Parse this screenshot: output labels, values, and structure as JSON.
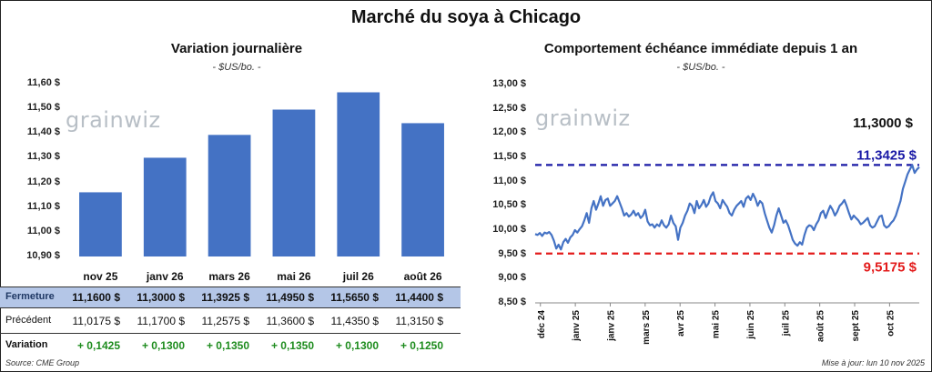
{
  "main_title": "Marché du soya à Chicago",
  "watermark": "grainwiz",
  "left": {
    "title": "Variation journalière",
    "unit": "- $US/bo. -"
  },
  "right": {
    "title": "Comportement échéance immédiate depuis 1 an",
    "unit": "- $US/bo. -"
  },
  "table": {
    "rows": [
      {
        "label": "Fermeture",
        "cells": [
          "11,1600 $",
          "11,3000 $",
          "11,3925 $",
          "11,4950 $",
          "11,5650 $",
          "11,4400 $"
        ]
      },
      {
        "label": "Précédent",
        "cells": [
          "11,0175 $",
          "11,1700 $",
          "11,2575 $",
          "11,3600 $",
          "11,4350 $",
          "11,3150 $"
        ]
      },
      {
        "label": "Variation",
        "cells": [
          "+ 0,1425",
          "+ 0,1300",
          "+ 0,1350",
          "+ 0,1350",
          "+ 0,1300",
          "+ 0,1250"
        ]
      }
    ]
  },
  "footer": {
    "source": "Source: CME Group",
    "updated": "Mise à jour: lun 10 nov 2025"
  },
  "colors": {
    "bar": "#4472c4",
    "line": "#4472c4",
    "high_line": "#1a1aa6",
    "low_line": "#e31b1b",
    "last_label": "#111111"
  },
  "chart_data": [
    {
      "type": "bar",
      "title": "Variation journalière",
      "categories": [
        "nov 25",
        "janv 26",
        "mars 26",
        "mai 26",
        "juil 26",
        "août 26"
      ],
      "values": [
        11.16,
        11.3,
        11.3925,
        11.495,
        11.565,
        11.44
      ],
      "ylim": [
        10.9,
        11.6
      ],
      "yticks": [
        "10,90 $",
        "11,00 $",
        "11,10 $",
        "11,20 $",
        "11,30 $",
        "11,40 $",
        "11,50 $",
        "11,60 $"
      ],
      "ytick_values": [
        10.9,
        11.0,
        11.1,
        11.2,
        11.3,
        11.4,
        11.5,
        11.6
      ],
      "grid": false
    },
    {
      "type": "line",
      "title": "Comportement échéance immédiate depuis 1 an",
      "ylim": [
        8.5,
        13.0
      ],
      "yticks": [
        "8,50 $",
        "9,00 $",
        "9,50 $",
        "10,00 $",
        "10,50 $",
        "11,00 $",
        "11,50 $",
        "12,00 $",
        "12,50 $",
        "13,00 $"
      ],
      "ytick_values": [
        8.5,
        9.0,
        9.5,
        10.0,
        10.5,
        11.0,
        11.5,
        12.0,
        12.5,
        13.0
      ],
      "xticks": [
        "déc 24",
        "janv 25",
        "janv 25",
        "mars 25",
        "avr 25",
        "mai 25",
        "juin 25",
        "juil 25",
        "août 25",
        "sept 25",
        "oct 25"
      ],
      "high": {
        "value": 11.3425,
        "label": "11,3425 $"
      },
      "low": {
        "value": 9.5175,
        "label": "9,5175 $"
      },
      "last": {
        "value": 11.3,
        "label": "11,3000 $"
      },
      "series": [
        {
          "values": [
            9.92,
            9.9,
            9.94,
            9.88,
            9.95,
            9.93,
            9.96,
            9.9,
            9.78,
            9.62,
            9.7,
            9.6,
            9.75,
            9.82,
            9.74,
            9.85,
            9.9,
            10.0,
            9.95,
            10.02,
            10.08,
            10.2,
            10.35,
            10.15,
            10.45,
            10.6,
            10.42,
            10.55,
            10.7,
            10.5,
            10.62,
            10.65,
            10.5,
            10.55,
            10.6,
            10.7,
            10.58,
            10.45,
            10.3,
            10.35,
            10.28,
            10.32,
            10.4,
            10.3,
            10.35,
            10.25,
            10.3,
            10.42,
            10.18,
            10.1,
            10.12,
            10.05,
            10.12,
            10.08,
            10.2,
            10.1,
            10.05,
            10.12,
            10.3,
            10.15,
            10.08,
            9.8,
            10.05,
            10.15,
            10.3,
            10.4,
            10.55,
            10.5,
            10.35,
            10.6,
            10.45,
            10.52,
            10.62,
            10.48,
            10.55,
            10.7,
            10.78,
            10.6,
            10.55,
            10.45,
            10.62,
            10.55,
            10.48,
            10.35,
            10.3,
            10.42,
            10.5,
            10.55,
            10.6,
            10.48,
            10.65,
            10.7,
            10.62,
            10.75,
            10.65,
            10.5,
            10.6,
            10.55,
            10.35,
            10.2,
            10.05,
            9.95,
            10.1,
            10.3,
            10.45,
            10.3,
            10.15,
            10.2,
            10.1,
            9.95,
            9.8,
            9.72,
            9.68,
            9.75,
            9.7,
            9.9,
            10.05,
            10.1,
            10.08,
            10.0,
            10.12,
            10.2,
            10.35,
            10.4,
            10.25,
            10.38,
            10.5,
            10.42,
            10.3,
            10.38,
            10.5,
            10.55,
            10.62,
            10.5,
            10.35,
            10.22,
            10.3,
            10.25,
            10.2,
            10.12,
            10.15,
            10.2,
            10.25,
            10.1,
            10.05,
            10.08,
            10.18,
            10.28,
            10.3,
            10.1,
            10.05,
            10.08,
            10.15,
            10.2,
            10.3,
            10.45,
            10.6,
            10.85,
            11.0,
            11.15,
            11.25,
            11.34,
            11.18,
            11.25,
            11.3
          ]
        }
      ]
    }
  ]
}
